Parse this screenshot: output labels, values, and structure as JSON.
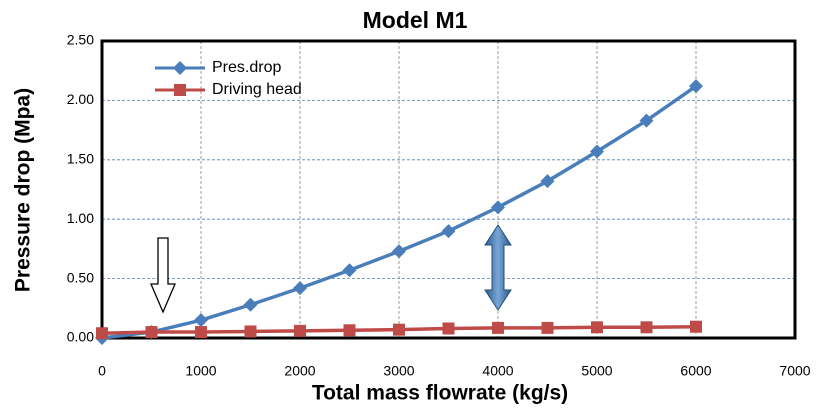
{
  "chart_data": {
    "type": "line",
    "title": "Model M1",
    "x_label": "Total mass flowrate (kg/s)",
    "y_label": "Pressure drop (Mpa)",
    "x": [
      0,
      500,
      1000,
      1500,
      2000,
      2500,
      3000,
      3500,
      4000,
      4500,
      5000,
      5500,
      6000
    ],
    "series": [
      {
        "name": "Pres.drop",
        "color": "#4a7ebb",
        "marker": "diamond",
        "values": [
          0.0,
          0.05,
          0.15,
          0.28,
          0.42,
          0.57,
          0.73,
          0.9,
          1.1,
          1.32,
          1.57,
          1.83,
          2.12
        ]
      },
      {
        "name": "Driving head",
        "color": "#be4b48",
        "marker": "square",
        "values": [
          0.04,
          0.05,
          0.05,
          0.055,
          0.06,
          0.065,
          0.07,
          0.08,
          0.085,
          0.085,
          0.09,
          0.09,
          0.095
        ]
      }
    ],
    "xlim": [
      0,
      7000
    ],
    "xticks": [
      0,
      1000,
      2000,
      3000,
      4000,
      5000,
      6000,
      7000
    ],
    "ylim": [
      0,
      2.5
    ],
    "yticks": [
      {
        "value": 0,
        "label": "0.00"
      },
      {
        "value": 0.5,
        "label": "0.50"
      },
      {
        "value": 1,
        "label": "1.00"
      },
      {
        "value": 1.5,
        "label": "1.50"
      },
      {
        "value": 2,
        "label": "2.00"
      },
      {
        "value": 2.5,
        "label": "2.50"
      }
    ],
    "grid": true,
    "legend": "upper left"
  }
}
